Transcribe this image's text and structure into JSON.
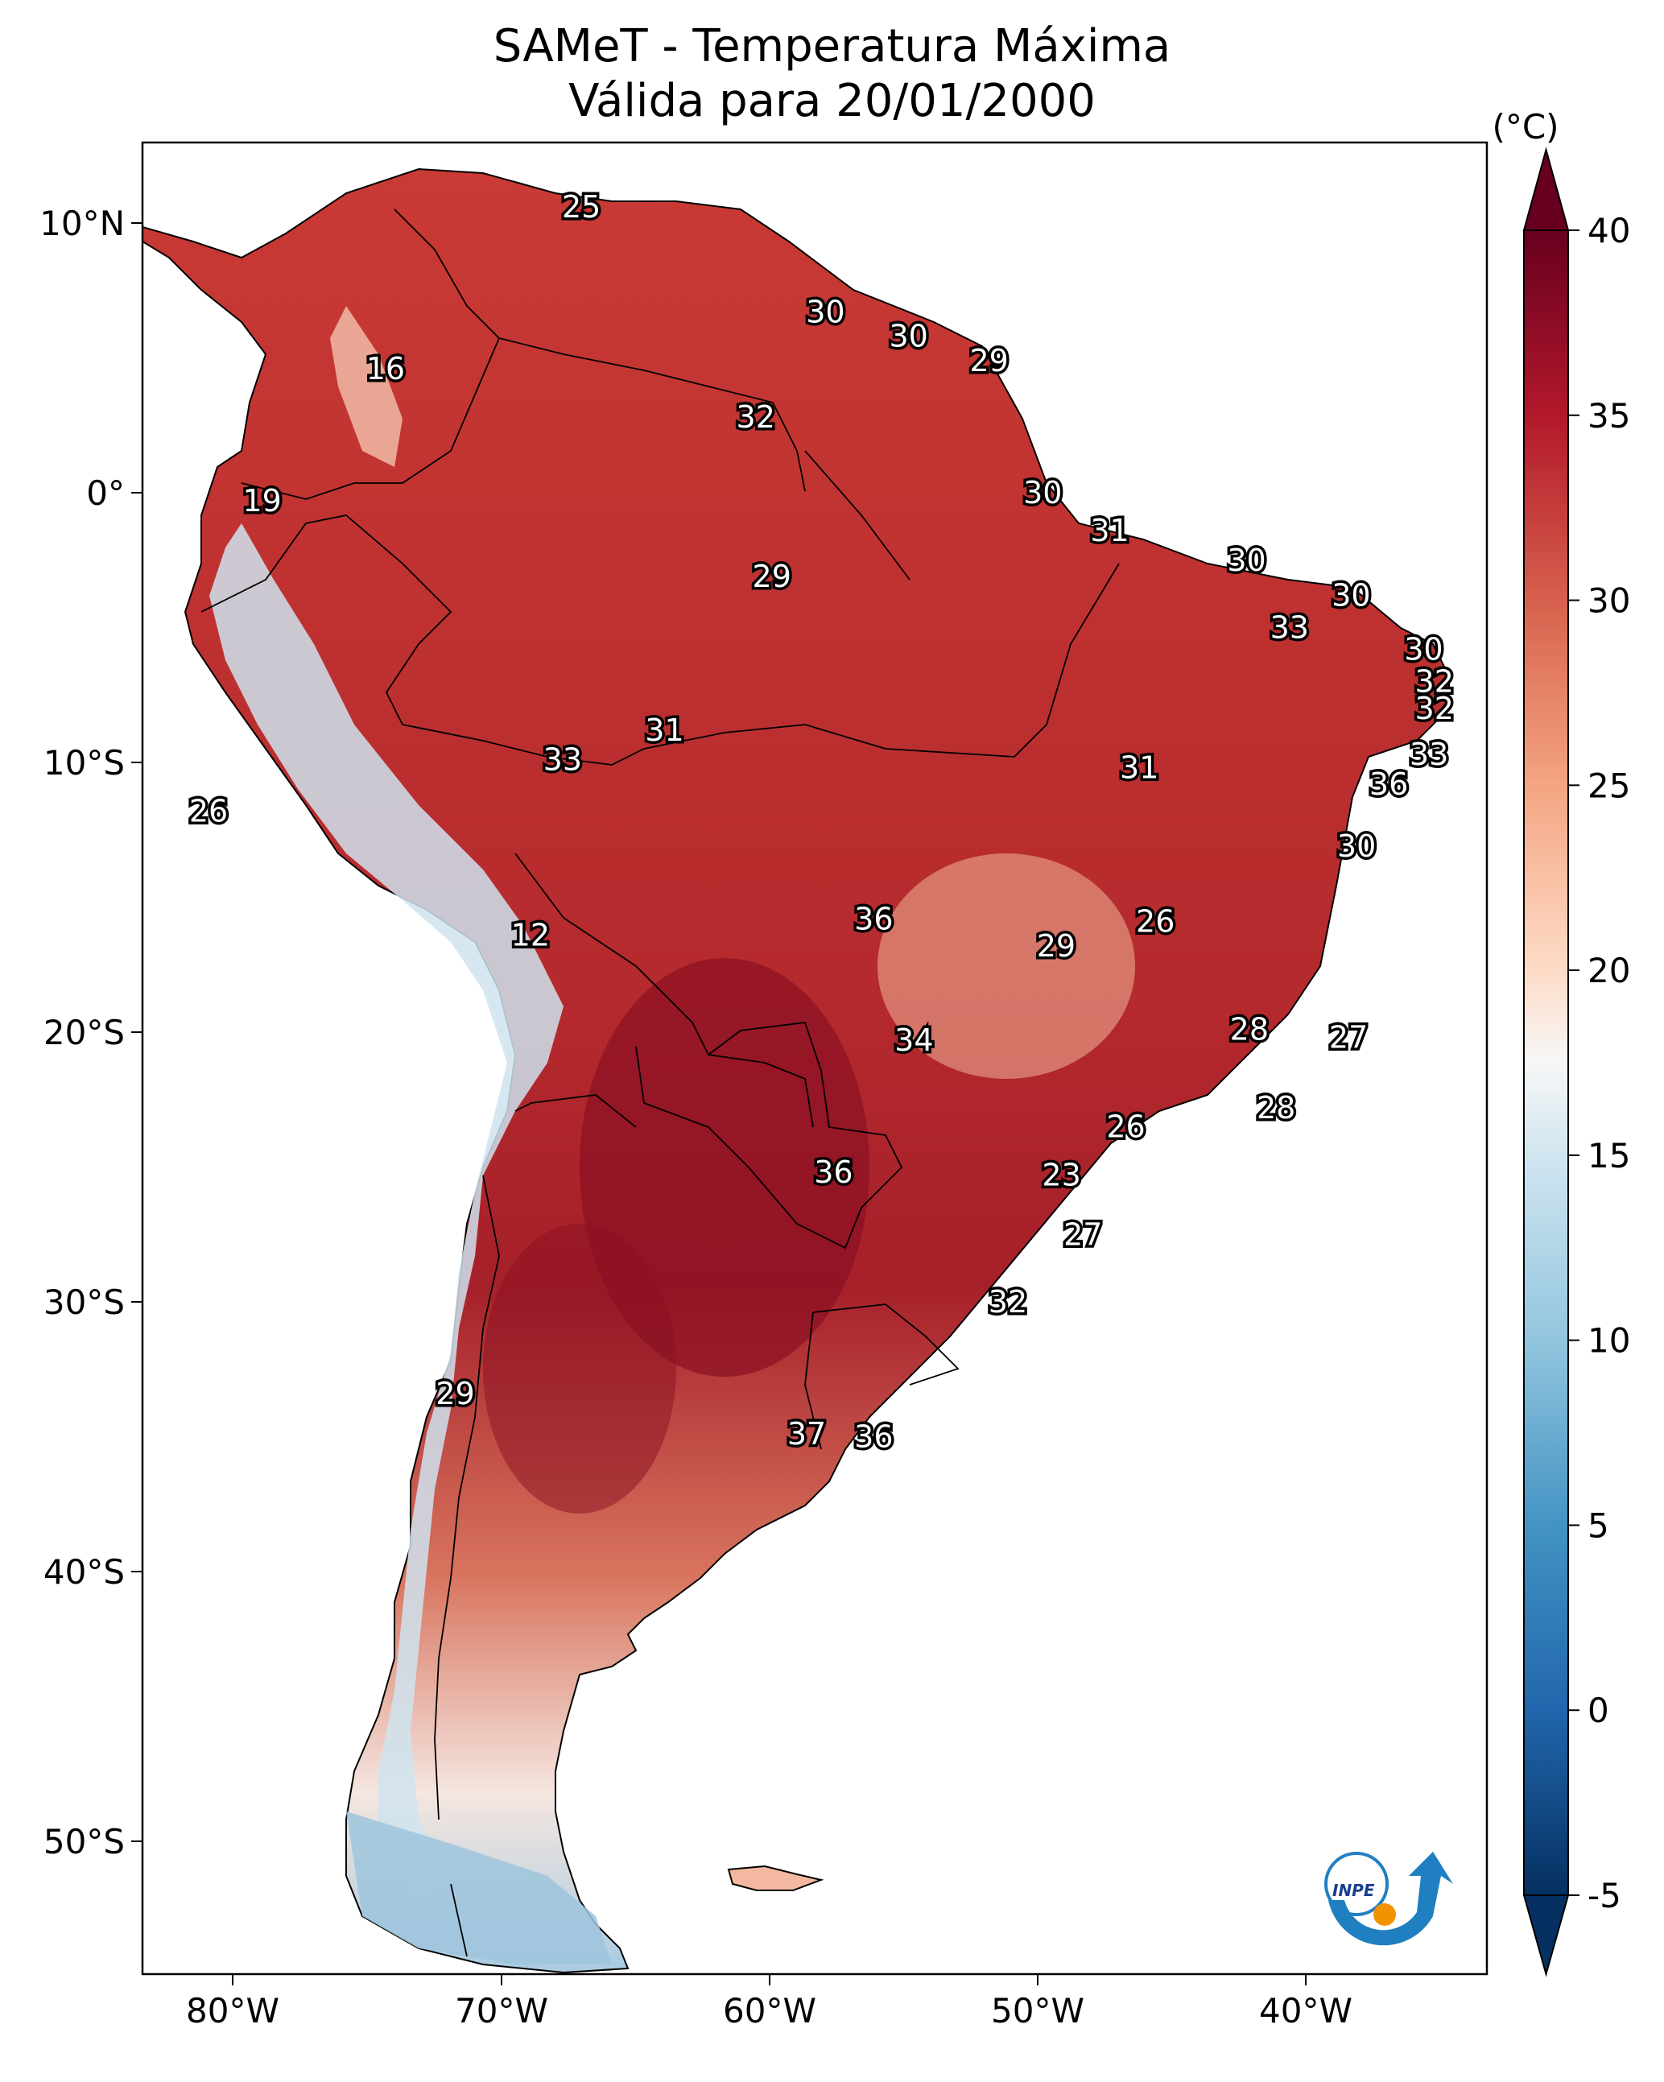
{
  "title": "SAMeT - Temperatura Máxima",
  "subtitle": "Válida para 20/01/2000",
  "colorbar": {
    "unit_label": "(°C)",
    "ticks": [
      "-5",
      "0",
      "5",
      "10",
      "15",
      "20",
      "25",
      "30",
      "35",
      "40"
    ],
    "min": -5,
    "max": 40,
    "colors": [
      "#053061",
      "#2166ac",
      "#4393c3",
      "#92c5de",
      "#d1e5f0",
      "#f7f7f7",
      "#fddbc7",
      "#f4a582",
      "#d6604d",
      "#b2182b",
      "#67001f"
    ]
  },
  "axes": {
    "lon_ticks": [
      "80°W",
      "70°W",
      "60°W",
      "50°W",
      "40°W"
    ],
    "lat_ticks": [
      "10°N",
      "0°",
      "10°S",
      "20°S",
      "30°S",
      "40°S",
      "50°S"
    ]
  },
  "contour_labels": [
    {
      "text": "25",
      "lon": -67.0,
      "lat": 10.6
    },
    {
      "text": "16",
      "lon": -74.3,
      "lat": 4.6
    },
    {
      "text": "30",
      "lon": -57.9,
      "lat": 6.7
    },
    {
      "text": "30",
      "lon": -54.8,
      "lat": 5.8
    },
    {
      "text": "29",
      "lon": -51.8,
      "lat": 4.9
    },
    {
      "text": "32",
      "lon": -60.5,
      "lat": 2.8
    },
    {
      "text": "19",
      "lon": -78.9,
      "lat": -0.3
    },
    {
      "text": "30",
      "lon": -49.8,
      "lat": -0.0
    },
    {
      "text": "31",
      "lon": -47.3,
      "lat": -1.4
    },
    {
      "text": "30",
      "lon": -42.2,
      "lat": -2.5
    },
    {
      "text": "29",
      "lon": -59.9,
      "lat": -3.1
    },
    {
      "text": "30",
      "lon": -38.3,
      "lat": -3.8
    },
    {
      "text": "33",
      "lon": -40.6,
      "lat": -5.0
    },
    {
      "text": "30",
      "lon": -35.6,
      "lat": -5.8
    },
    {
      "text": "32",
      "lon": -35.2,
      "lat": -7.0
    },
    {
      "text": "32",
      "lon": -35.2,
      "lat": -8.0
    },
    {
      "text": "31",
      "lon": -63.9,
      "lat": -8.8
    },
    {
      "text": "33",
      "lon": -67.7,
      "lat": -9.9
    },
    {
      "text": "31",
      "lon": -46.2,
      "lat": -10.2
    },
    {
      "text": "33",
      "lon": -35.4,
      "lat": -9.7
    },
    {
      "text": "36",
      "lon": -36.9,
      "lat": -10.8
    },
    {
      "text": "26",
      "lon": -80.9,
      "lat": -11.8
    },
    {
      "text": "30",
      "lon": -38.1,
      "lat": -13.1
    },
    {
      "text": "36",
      "lon": -56.1,
      "lat": -15.8
    },
    {
      "text": "26",
      "lon": -45.6,
      "lat": -15.9
    },
    {
      "text": "29",
      "lon": -49.3,
      "lat": -16.8
    },
    {
      "text": "12",
      "lon": -68.9,
      "lat": -16.4
    },
    {
      "text": "28",
      "lon": -42.1,
      "lat": -19.9
    },
    {
      "text": "27",
      "lon": -38.4,
      "lat": -20.2
    },
    {
      "text": "34",
      "lon": -54.6,
      "lat": -20.3
    },
    {
      "text": "28",
      "lon": -41.1,
      "lat": -22.8
    },
    {
      "text": "26",
      "lon": -46.7,
      "lat": -23.5
    },
    {
      "text": "36",
      "lon": -57.6,
      "lat": -25.2
    },
    {
      "text": "23",
      "lon": -49.1,
      "lat": -25.3
    },
    {
      "text": "27",
      "lon": -48.3,
      "lat": -27.5
    },
    {
      "text": "32",
      "lon": -51.1,
      "lat": -30.0
    },
    {
      "text": "29",
      "lon": -71.7,
      "lat": -33.4
    },
    {
      "text": "37",
      "lon": -58.6,
      "lat": -34.9
    },
    {
      "text": "36",
      "lon": -56.1,
      "lat": -35.0
    }
  ]
}
